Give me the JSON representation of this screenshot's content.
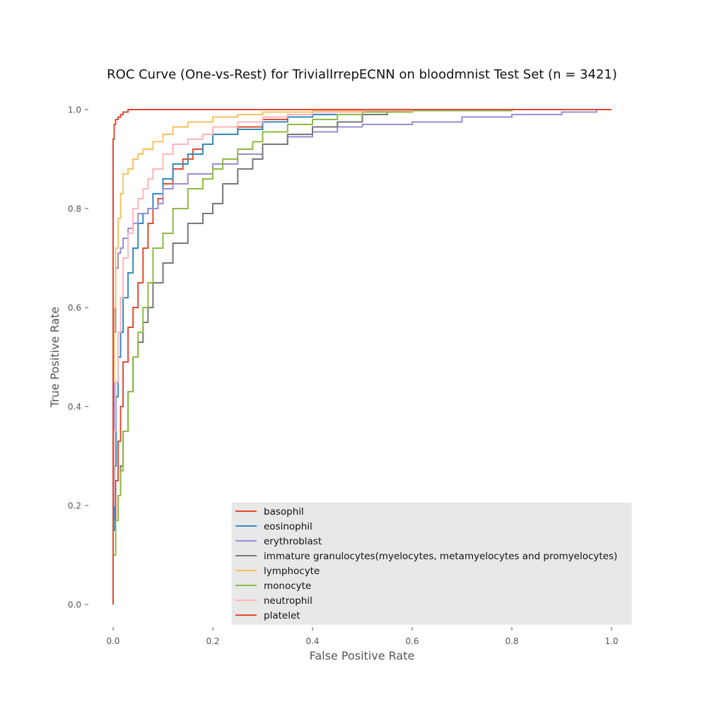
{
  "chart_data": {
    "type": "line",
    "title": "ROC Curve (One-vs-Rest) for TrivialIrrepECNN on bloodmnist Test Set (n = 3421)",
    "xlabel": "False Positive Rate",
    "ylabel": "True Positive Rate",
    "xlim": [
      0.0,
      1.0
    ],
    "ylim": [
      0.0,
      1.0
    ],
    "xticks": [
      "0.0",
      "0.2",
      "0.4",
      "0.6",
      "0.8",
      "1.0"
    ],
    "yticks": [
      "0.0",
      "0.2",
      "0.4",
      "0.6",
      "0.8",
      "1.0"
    ],
    "grid": false,
    "legend_position": "bottom-right",
    "series": [
      {
        "name": "basophil",
        "color": "#E24A33",
        "x": [
          0.0,
          0.005,
          0.01,
          0.015,
          0.02,
          0.03,
          0.04,
          0.05,
          0.06,
          0.07,
          0.08,
          0.09,
          0.1,
          0.12,
          0.14,
          0.16,
          0.18,
          0.2,
          0.25,
          0.3,
          0.35,
          0.4,
          0.5,
          0.6,
          0.8,
          1.0
        ],
        "y": [
          0.0,
          0.15,
          0.25,
          0.33,
          0.4,
          0.49,
          0.56,
          0.6,
          0.65,
          0.72,
          0.77,
          0.8,
          0.82,
          0.85,
          0.88,
          0.9,
          0.92,
          0.93,
          0.95,
          0.965,
          0.98,
          0.99,
          0.995,
          0.998,
          1.0,
          1.0
        ]
      },
      {
        "name": "eosinophil",
        "color": "#348ABD",
        "x": [
          0.0,
          0.003,
          0.006,
          0.01,
          0.015,
          0.02,
          0.03,
          0.04,
          0.05,
          0.06,
          0.07,
          0.08,
          0.1,
          0.12,
          0.15,
          0.18,
          0.2,
          0.25,
          0.3,
          0.35,
          0.4,
          0.5,
          0.6,
          0.8,
          1.0
        ],
        "y": [
          0.0,
          0.15,
          0.28,
          0.42,
          0.5,
          0.55,
          0.62,
          0.67,
          0.72,
          0.77,
          0.79,
          0.8,
          0.83,
          0.86,
          0.89,
          0.91,
          0.93,
          0.95,
          0.96,
          0.975,
          0.985,
          0.99,
          0.995,
          0.998,
          1.0
        ]
      },
      {
        "name": "erythroblast",
        "color": "#988ED5",
        "x": [
          0.0,
          0.002,
          0.005,
          0.01,
          0.015,
          0.02,
          0.03,
          0.04,
          0.05,
          0.07,
          0.09,
          0.1,
          0.12,
          0.15,
          0.2,
          0.25,
          0.3,
          0.35,
          0.4,
          0.45,
          0.5,
          0.6,
          0.7,
          0.8,
          0.9,
          0.97,
          1.0
        ],
        "y": [
          0.0,
          0.35,
          0.55,
          0.68,
          0.71,
          0.72,
          0.74,
          0.76,
          0.77,
          0.79,
          0.8,
          0.81,
          0.84,
          0.85,
          0.87,
          0.89,
          0.91,
          0.93,
          0.945,
          0.955,
          0.965,
          0.97,
          0.975,
          0.985,
          0.99,
          0.995,
          1.0
        ]
      },
      {
        "name": "immature granulocytes(myelocytes, metamyelocytes and promyelocytes)",
        "color": "#777777",
        "x": [
          0.0,
          0.005,
          0.01,
          0.015,
          0.02,
          0.03,
          0.04,
          0.05,
          0.06,
          0.07,
          0.08,
          0.1,
          0.12,
          0.15,
          0.18,
          0.2,
          0.22,
          0.25,
          0.28,
          0.3,
          0.35,
          0.4,
          0.45,
          0.5,
          0.55,
          0.6,
          0.8,
          1.0
        ],
        "y": [
          0.0,
          0.1,
          0.17,
          0.22,
          0.28,
          0.35,
          0.43,
          0.5,
          0.53,
          0.57,
          0.6,
          0.65,
          0.69,
          0.73,
          0.77,
          0.79,
          0.81,
          0.85,
          0.88,
          0.9,
          0.93,
          0.95,
          0.965,
          0.975,
          0.99,
          0.995,
          0.998,
          1.0
        ]
      },
      {
        "name": "lymphocyte",
        "color": "#FBC15E",
        "x": [
          0.0,
          0.002,
          0.005,
          0.01,
          0.015,
          0.02,
          0.03,
          0.04,
          0.05,
          0.06,
          0.08,
          0.1,
          0.12,
          0.15,
          0.2,
          0.25,
          0.3,
          0.4,
          0.5,
          0.7,
          1.0
        ],
        "y": [
          0.0,
          0.45,
          0.6,
          0.72,
          0.78,
          0.83,
          0.87,
          0.88,
          0.9,
          0.91,
          0.92,
          0.935,
          0.95,
          0.965,
          0.975,
          0.985,
          0.99,
          0.995,
          0.998,
          1.0,
          1.0
        ]
      },
      {
        "name": "monocyte",
        "color": "#8EBA42",
        "x": [
          0.0,
          0.005,
          0.01,
          0.015,
          0.02,
          0.03,
          0.04,
          0.05,
          0.06,
          0.07,
          0.08,
          0.1,
          0.12,
          0.15,
          0.18,
          0.2,
          0.22,
          0.25,
          0.28,
          0.3,
          0.35,
          0.4,
          0.45,
          0.5,
          0.6,
          0.8,
          1.0
        ],
        "y": [
          0.0,
          0.1,
          0.17,
          0.22,
          0.27,
          0.35,
          0.43,
          0.5,
          0.55,
          0.6,
          0.65,
          0.72,
          0.75,
          0.8,
          0.84,
          0.86,
          0.88,
          0.9,
          0.92,
          0.935,
          0.955,
          0.97,
          0.98,
          0.99,
          0.995,
          0.998,
          1.0
        ]
      },
      {
        "name": "neutrophil",
        "color": "#FFB5B8",
        "x": [
          0.0,
          0.002,
          0.005,
          0.01,
          0.015,
          0.02,
          0.03,
          0.04,
          0.05,
          0.06,
          0.07,
          0.08,
          0.1,
          0.12,
          0.15,
          0.18,
          0.2,
          0.25,
          0.3,
          0.35,
          0.4,
          0.5,
          0.6,
          0.8,
          1.0
        ],
        "y": [
          0.0,
          0.2,
          0.35,
          0.45,
          0.55,
          0.62,
          0.7,
          0.75,
          0.8,
          0.82,
          0.84,
          0.86,
          0.88,
          0.91,
          0.93,
          0.94,
          0.95,
          0.965,
          0.975,
          0.985,
          0.99,
          0.995,
          0.998,
          1.0,
          1.0
        ]
      },
      {
        "name": "platelet",
        "color": "#E24A33",
        "x": [
          0.0,
          0.0,
          0.002,
          0.005,
          0.01,
          0.015,
          0.02,
          0.03,
          0.04,
          0.05,
          0.1,
          0.5,
          1.0
        ],
        "y": [
          0.0,
          0.86,
          0.94,
          0.97,
          0.98,
          0.985,
          0.99,
          0.995,
          1.0,
          1.0,
          1.0,
          1.0,
          1.0
        ]
      }
    ]
  }
}
